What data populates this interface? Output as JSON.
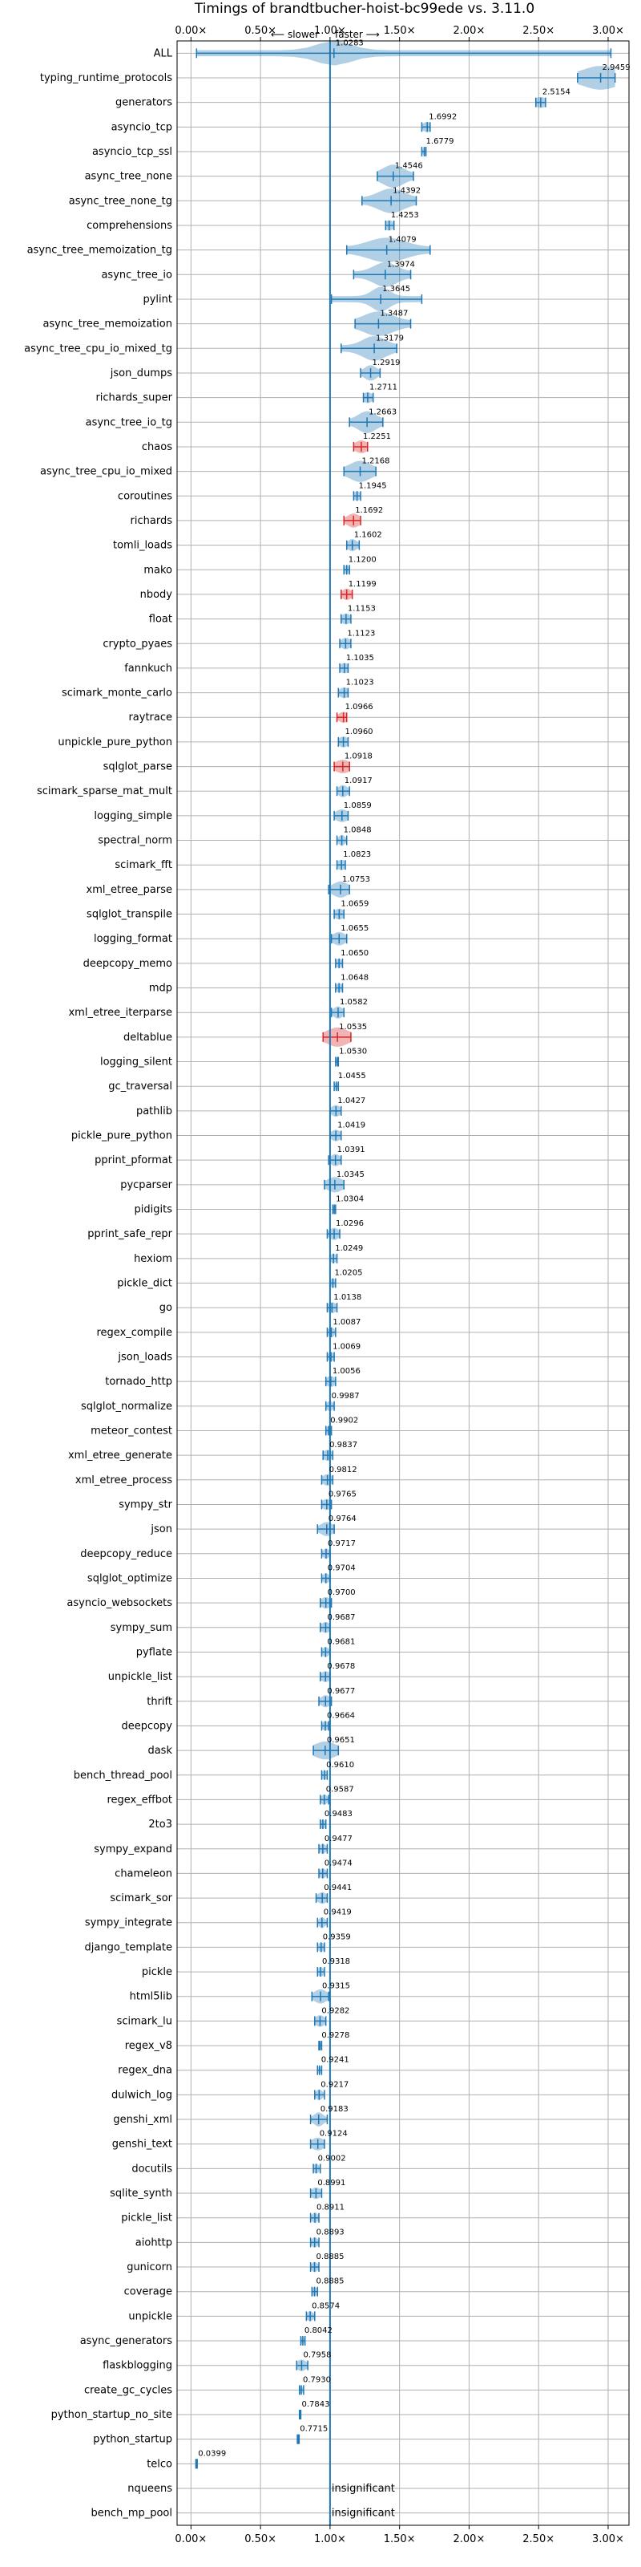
{
  "chart_data": {
    "type": "violin",
    "title": "Timings of brandtbucher-hoist-bc99ede vs. 3.11.0",
    "direction_labels": {
      "slower": "⟵ slower",
      "faster": "faster ⟶"
    },
    "xlim": [
      -0.1,
      3.15
    ],
    "xticks": [
      0.0,
      0.5,
      1.0,
      1.5,
      2.0,
      2.5,
      3.0
    ],
    "xtick_labels": [
      "0.00×",
      "0.50×",
      "1.00×",
      "1.50×",
      "2.00×",
      "2.50×",
      "3.00×"
    ],
    "grid": true,
    "colors": {
      "violin": "#1f77b4",
      "significant_slow": "#d62728",
      "reference": "#1f77b4"
    },
    "benchmarks": [
      {
        "name": "ALL",
        "value": 1.0283,
        "label": "1.0283",
        "min": 0.04,
        "max": 3.02,
        "spread": 0.12
      },
      {
        "name": "typing_runtime_protocols",
        "value": 2.9459,
        "label": "2.9459",
        "min": 2.78,
        "max": 3.05,
        "spread": 0.12
      },
      {
        "name": "generators",
        "value": 2.5154,
        "label": "2.5154",
        "min": 2.48,
        "max": 2.55,
        "spread": 0.04
      },
      {
        "name": "asyncio_tcp",
        "value": 1.6992,
        "label": "1.6992",
        "min": 1.66,
        "max": 1.72,
        "spread": 0.03
      },
      {
        "name": "asyncio_tcp_ssl",
        "value": 1.6779,
        "label": "1.6779",
        "min": 1.66,
        "max": 1.69,
        "spread": 0.01
      },
      {
        "name": "async_tree_none",
        "value": 1.4546,
        "label": "1.4546",
        "min": 1.34,
        "max": 1.6,
        "spread": 0.07
      },
      {
        "name": "async_tree_none_tg",
        "value": 1.4392,
        "label": "1.4392",
        "min": 1.23,
        "max": 1.62,
        "spread": 0.09
      },
      {
        "name": "comprehensions",
        "value": 1.4253,
        "label": "1.4253",
        "min": 1.4,
        "max": 1.46,
        "spread": 0.03
      },
      {
        "name": "async_tree_memoization_tg",
        "value": 1.4079,
        "label": "1.4079",
        "min": 1.12,
        "max": 1.72,
        "spread": 0.13
      },
      {
        "name": "async_tree_io",
        "value": 1.3974,
        "label": "1.3974",
        "min": 1.17,
        "max": 1.58,
        "spread": 0.08
      },
      {
        "name": "pylint",
        "value": 1.3645,
        "label": "1.3645",
        "min": 1.01,
        "max": 1.66,
        "spread": 0.06
      },
      {
        "name": "async_tree_memoization",
        "value": 1.3487,
        "label": "1.3487",
        "min": 1.18,
        "max": 1.58,
        "spread": 0.1
      },
      {
        "name": "async_tree_cpu_io_mixed_tg",
        "value": 1.3179,
        "label": "1.3179",
        "min": 1.08,
        "max": 1.48,
        "spread": 0.08
      },
      {
        "name": "json_dumps",
        "value": 1.2919,
        "label": "1.2919",
        "min": 1.22,
        "max": 1.36,
        "spread": 0.04
      },
      {
        "name": "richards_super",
        "value": 1.2711,
        "label": "1.2711",
        "min": 1.24,
        "max": 1.31,
        "spread": 0.03
      },
      {
        "name": "async_tree_io_tg",
        "value": 1.2663,
        "label": "1.2663",
        "min": 1.14,
        "max": 1.38,
        "spread": 0.06
      },
      {
        "name": "chaos",
        "value": 1.2251,
        "label": "1.2251",
        "min": 1.17,
        "max": 1.27,
        "spread": 0.04,
        "highlight": true
      },
      {
        "name": "async_tree_cpu_io_mixed",
        "value": 1.2168,
        "label": "1.2168",
        "min": 1.1,
        "max": 1.33,
        "spread": 0.07
      },
      {
        "name": "coroutines",
        "value": 1.1945,
        "label": "1.1945",
        "min": 1.17,
        "max": 1.22,
        "spread": 0.02
      },
      {
        "name": "richards",
        "value": 1.1692,
        "label": "1.1692",
        "min": 1.1,
        "max": 1.22,
        "spread": 0.04,
        "highlight": true
      },
      {
        "name": "tomli_loads",
        "value": 1.1602,
        "label": "1.1602",
        "min": 1.12,
        "max": 1.21,
        "spread": 0.03
      },
      {
        "name": "mako",
        "value": 1.12,
        "label": "1.1200",
        "min": 1.1,
        "max": 1.14,
        "spread": 0.02
      },
      {
        "name": "nbody",
        "value": 1.1199,
        "label": "1.1199",
        "min": 1.08,
        "max": 1.16,
        "spread": 0.03,
        "highlight": true
      },
      {
        "name": "float",
        "value": 1.1153,
        "label": "1.1153",
        "min": 1.08,
        "max": 1.15,
        "spread": 0.03
      },
      {
        "name": "crypto_pyaes",
        "value": 1.1123,
        "label": "1.1123",
        "min": 1.07,
        "max": 1.15,
        "spread": 0.03
      },
      {
        "name": "fannkuch",
        "value": 1.1035,
        "label": "1.1035",
        "min": 1.07,
        "max": 1.13,
        "spread": 0.03
      },
      {
        "name": "scimark_monte_carlo",
        "value": 1.1023,
        "label": "1.1023",
        "min": 1.06,
        "max": 1.13,
        "spread": 0.03
      },
      {
        "name": "raytrace",
        "value": 1.0966,
        "label": "1.0966",
        "min": 1.05,
        "max": 1.12,
        "spread": 0.03,
        "highlight": true
      },
      {
        "name": "unpickle_pure_python",
        "value": 1.096,
        "label": "1.0960",
        "min": 1.06,
        "max": 1.13,
        "spread": 0.03
      },
      {
        "name": "sqlglot_parse",
        "value": 1.0918,
        "label": "1.0918",
        "min": 1.03,
        "max": 1.14,
        "spread": 0.05,
        "highlight": true
      },
      {
        "name": "scimark_sparse_mat_mult",
        "value": 1.0917,
        "label": "1.0917",
        "min": 1.05,
        "max": 1.14,
        "spread": 0.03
      },
      {
        "name": "logging_simple",
        "value": 1.0859,
        "label": "1.0859",
        "min": 1.03,
        "max": 1.13,
        "spread": 0.04
      },
      {
        "name": "spectral_norm",
        "value": 1.0848,
        "label": "1.0848",
        "min": 1.05,
        "max": 1.12,
        "spread": 0.02
      },
      {
        "name": "scimark_fft",
        "value": 1.0823,
        "label": "1.0823",
        "min": 1.05,
        "max": 1.11,
        "spread": 0.03
      },
      {
        "name": "xml_etree_parse",
        "value": 1.0753,
        "label": "1.0753",
        "min": 0.99,
        "max": 1.14,
        "spread": 0.05
      },
      {
        "name": "sqlglot_transpile",
        "value": 1.0659,
        "label": "1.0659",
        "min": 1.03,
        "max": 1.1,
        "spread": 0.03
      },
      {
        "name": "logging_format",
        "value": 1.0655,
        "label": "1.0655",
        "min": 1.01,
        "max": 1.12,
        "spread": 0.04
      },
      {
        "name": "deepcopy_memo",
        "value": 1.065,
        "label": "1.0650",
        "min": 1.04,
        "max": 1.09,
        "spread": 0.02
      },
      {
        "name": "mdp",
        "value": 1.0648,
        "label": "1.0648",
        "min": 1.04,
        "max": 1.09,
        "spread": 0.02
      },
      {
        "name": "xml_etree_iterparse",
        "value": 1.0582,
        "label": "1.0582",
        "min": 1.01,
        "max": 1.1,
        "spread": 0.03
      },
      {
        "name": "deltablue",
        "value": 1.0535,
        "label": "1.0535",
        "min": 0.95,
        "max": 1.15,
        "spread": 0.07,
        "highlight": true
      },
      {
        "name": "logging_silent",
        "value": 1.053,
        "label": "1.0530",
        "min": 1.04,
        "max": 1.06,
        "spread": 0.01
      },
      {
        "name": "gc_traversal",
        "value": 1.0455,
        "label": "1.0455",
        "min": 1.03,
        "max": 1.06,
        "spread": 0.01
      },
      {
        "name": "pathlib",
        "value": 1.0427,
        "label": "1.0427",
        "min": 1.0,
        "max": 1.08,
        "spread": 0.03
      },
      {
        "name": "pickle_pure_python",
        "value": 1.0419,
        "label": "1.0419",
        "min": 1.0,
        "max": 1.08,
        "spread": 0.03
      },
      {
        "name": "pprint_pformat",
        "value": 1.0391,
        "label": "1.0391",
        "min": 0.99,
        "max": 1.08,
        "spread": 0.03
      },
      {
        "name": "pycparser",
        "value": 1.0345,
        "label": "1.0345",
        "min": 0.96,
        "max": 1.1,
        "spread": 0.05
      },
      {
        "name": "pidigits",
        "value": 1.0304,
        "label": "1.0304",
        "min": 1.02,
        "max": 1.04,
        "spread": 0.01
      },
      {
        "name": "pprint_safe_repr",
        "value": 1.0296,
        "label": "1.0296",
        "min": 0.98,
        "max": 1.07,
        "spread": 0.03
      },
      {
        "name": "hexiom",
        "value": 1.0249,
        "label": "1.0249",
        "min": 1.0,
        "max": 1.05,
        "spread": 0.02
      },
      {
        "name": "pickle_dict",
        "value": 1.0205,
        "label": "1.0205",
        "min": 1.0,
        "max": 1.04,
        "spread": 0.02
      },
      {
        "name": "go",
        "value": 1.0138,
        "label": "1.0138",
        "min": 0.98,
        "max": 1.05,
        "spread": 0.03
      },
      {
        "name": "regex_compile",
        "value": 1.0087,
        "label": "1.0087",
        "min": 0.98,
        "max": 1.04,
        "spread": 0.02
      },
      {
        "name": "json_loads",
        "value": 1.0069,
        "label": "1.0069",
        "min": 0.98,
        "max": 1.03,
        "spread": 0.02
      },
      {
        "name": "tornado_http",
        "value": 1.0056,
        "label": "1.0056",
        "min": 0.97,
        "max": 1.04,
        "spread": 0.03
      },
      {
        "name": "sqlglot_normalize",
        "value": 0.9987,
        "label": "0.9987",
        "min": 0.97,
        "max": 1.03,
        "spread": 0.02
      },
      {
        "name": "meteor_contest",
        "value": 0.9902,
        "label": "0.9902",
        "min": 0.97,
        "max": 1.01,
        "spread": 0.02
      },
      {
        "name": "xml_etree_generate",
        "value": 0.9837,
        "label": "0.9837",
        "min": 0.95,
        "max": 1.02,
        "spread": 0.03
      },
      {
        "name": "xml_etree_process",
        "value": 0.9812,
        "label": "0.9812",
        "min": 0.94,
        "max": 1.02,
        "spread": 0.03
      },
      {
        "name": "sympy_str",
        "value": 0.9765,
        "label": "0.9765",
        "min": 0.94,
        "max": 1.01,
        "spread": 0.03
      },
      {
        "name": "json",
        "value": 0.9764,
        "label": "0.9764",
        "min": 0.91,
        "max": 1.03,
        "spread": 0.04
      },
      {
        "name": "deepcopy_reduce",
        "value": 0.9717,
        "label": "0.9717",
        "min": 0.94,
        "max": 1.0,
        "spread": 0.02
      },
      {
        "name": "sqlglot_optimize",
        "value": 0.9704,
        "label": "0.9704",
        "min": 0.94,
        "max": 1.0,
        "spread": 0.02
      },
      {
        "name": "asyncio_websockets",
        "value": 0.97,
        "label": "0.9700",
        "min": 0.93,
        "max": 1.01,
        "spread": 0.03
      },
      {
        "name": "sympy_sum",
        "value": 0.9687,
        "label": "0.9687",
        "min": 0.93,
        "max": 1.0,
        "spread": 0.03
      },
      {
        "name": "pyflate",
        "value": 0.9681,
        "label": "0.9681",
        "min": 0.94,
        "max": 1.0,
        "spread": 0.02
      },
      {
        "name": "unpickle_list",
        "value": 0.9678,
        "label": "0.9678",
        "min": 0.93,
        "max": 1.0,
        "spread": 0.03
      },
      {
        "name": "thrift",
        "value": 0.9677,
        "label": "0.9677",
        "min": 0.92,
        "max": 1.01,
        "spread": 0.03
      },
      {
        "name": "deepcopy",
        "value": 0.9664,
        "label": "0.9664",
        "min": 0.94,
        "max": 0.99,
        "spread": 0.02
      },
      {
        "name": "dask",
        "value": 0.9651,
        "label": "0.9651",
        "min": 0.88,
        "max": 1.06,
        "spread": 0.07
      },
      {
        "name": "bench_thread_pool",
        "value": 0.961,
        "label": "0.9610",
        "min": 0.94,
        "max": 0.98,
        "spread": 0.02
      },
      {
        "name": "regex_effbot",
        "value": 0.9587,
        "label": "0.9587",
        "min": 0.93,
        "max": 0.99,
        "spread": 0.02
      },
      {
        "name": "2to3",
        "value": 0.9483,
        "label": "0.9483",
        "min": 0.93,
        "max": 0.97,
        "spread": 0.02
      },
      {
        "name": "sympy_expand",
        "value": 0.9477,
        "label": "0.9477",
        "min": 0.92,
        "max": 0.98,
        "spread": 0.02
      },
      {
        "name": "chameleon",
        "value": 0.9474,
        "label": "0.9474",
        "min": 0.92,
        "max": 0.98,
        "spread": 0.02
      },
      {
        "name": "scimark_sor",
        "value": 0.9441,
        "label": "0.9441",
        "min": 0.9,
        "max": 0.98,
        "spread": 0.03
      },
      {
        "name": "sympy_integrate",
        "value": 0.9419,
        "label": "0.9419",
        "min": 0.91,
        "max": 0.98,
        "spread": 0.02
      },
      {
        "name": "django_template",
        "value": 0.9359,
        "label": "0.9359",
        "min": 0.91,
        "max": 0.96,
        "spread": 0.02
      },
      {
        "name": "pickle",
        "value": 0.9318,
        "label": "0.9318",
        "min": 0.91,
        "max": 0.96,
        "spread": 0.02
      },
      {
        "name": "html5lib",
        "value": 0.9315,
        "label": "0.9315",
        "min": 0.87,
        "max": 0.99,
        "spread": 0.04
      },
      {
        "name": "scimark_lu",
        "value": 0.9282,
        "label": "0.9282",
        "min": 0.89,
        "max": 0.97,
        "spread": 0.03
      },
      {
        "name": "regex_v8",
        "value": 0.9278,
        "label": "0.9278",
        "min": 0.92,
        "max": 0.94,
        "spread": 0.01
      },
      {
        "name": "regex_dna",
        "value": 0.9241,
        "label": "0.9241",
        "min": 0.91,
        "max": 0.94,
        "spread": 0.01
      },
      {
        "name": "dulwich_log",
        "value": 0.9217,
        "label": "0.9217",
        "min": 0.89,
        "max": 0.96,
        "spread": 0.02
      },
      {
        "name": "genshi_xml",
        "value": 0.9183,
        "label": "0.9183",
        "min": 0.86,
        "max": 0.98,
        "spread": 0.03
      },
      {
        "name": "genshi_text",
        "value": 0.9124,
        "label": "0.9124",
        "min": 0.86,
        "max": 0.96,
        "spread": 0.04
      },
      {
        "name": "docutils",
        "value": 0.9002,
        "label": "0.9002",
        "min": 0.88,
        "max": 0.93,
        "spread": 0.02
      },
      {
        "name": "sqlite_synth",
        "value": 0.8991,
        "label": "0.8991",
        "min": 0.86,
        "max": 0.94,
        "spread": 0.03
      },
      {
        "name": "pickle_list",
        "value": 0.8911,
        "label": "0.8911",
        "min": 0.86,
        "max": 0.92,
        "spread": 0.02
      },
      {
        "name": "aiohttp",
        "value": 0.8893,
        "label": "0.8893",
        "min": 0.86,
        "max": 0.92,
        "spread": 0.02
      },
      {
        "name": "gunicorn",
        "value": 0.8885,
        "label": "0.8885",
        "min": 0.86,
        "max": 0.92,
        "spread": 0.02
      },
      {
        "name": "coverage",
        "value": 0.8885,
        "label": "0.8885",
        "min": 0.87,
        "max": 0.91,
        "spread": 0.02
      },
      {
        "name": "unpickle",
        "value": 0.8574,
        "label": "0.8574",
        "min": 0.83,
        "max": 0.89,
        "spread": 0.02
      },
      {
        "name": "async_generators",
        "value": 0.8042,
        "label": "0.8042",
        "min": 0.79,
        "max": 0.82,
        "spread": 0.01
      },
      {
        "name": "flaskblogging",
        "value": 0.7958,
        "label": "0.7958",
        "min": 0.76,
        "max": 0.84,
        "spread": 0.03
      },
      {
        "name": "create_gc_cycles",
        "value": 0.793,
        "label": "0.7930",
        "min": 0.78,
        "max": 0.81,
        "spread": 0.01
      },
      {
        "name": "python_startup_no_site",
        "value": 0.7843,
        "label": "0.7843",
        "min": 0.78,
        "max": 0.79,
        "spread": 0.005
      },
      {
        "name": "python_startup",
        "value": 0.7715,
        "label": "0.7715",
        "min": 0.765,
        "max": 0.778,
        "spread": 0.005
      },
      {
        "name": "telco",
        "value": 0.0399,
        "label": "0.0399",
        "min": 0.035,
        "max": 0.045,
        "spread": 0.005
      },
      {
        "name": "nqueens",
        "insignificant": true,
        "label": "insignificant"
      },
      {
        "name": "bench_mp_pool",
        "insignificant": true,
        "label": "insignificant"
      }
    ]
  }
}
